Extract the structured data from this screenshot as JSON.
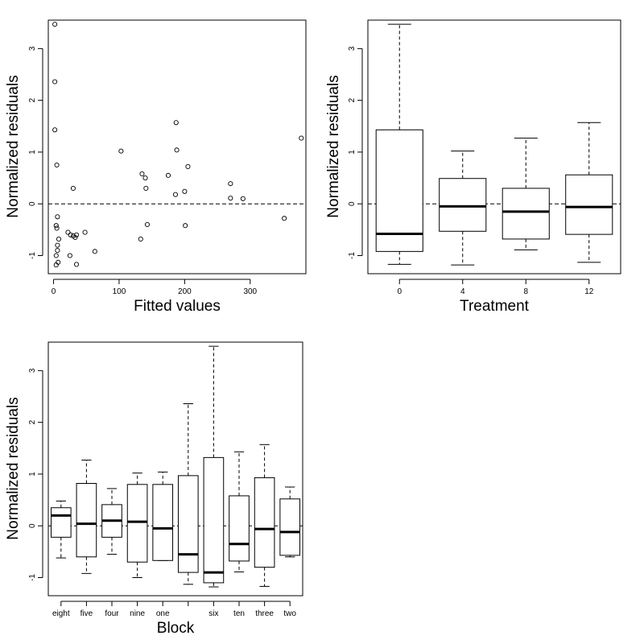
{
  "chart_data": [
    {
      "type": "scatter",
      "xlabel": "Fitted values",
      "ylabel": "Normalized residuals",
      "xlim": [
        -8,
        385
      ],
      "ylim": [
        -1.35,
        3.55
      ],
      "xticks": [
        0,
        100,
        200,
        300
      ],
      "yticks": [
        -1,
        0,
        1,
        2,
        3
      ],
      "reference_line": 0,
      "points": [
        {
          "x": 2,
          "y": 3.47
        },
        {
          "x": 2,
          "y": 2.36
        },
        {
          "x": 2,
          "y": 1.43
        },
        {
          "x": 5,
          "y": 0.75
        },
        {
          "x": 6,
          "y": -0.25
        },
        {
          "x": 4,
          "y": -0.42
        },
        {
          "x": 5,
          "y": -0.47
        },
        {
          "x": 8,
          "y": -0.68
        },
        {
          "x": 6,
          "y": -0.8
        },
        {
          "x": 6,
          "y": -0.9
        },
        {
          "x": 4,
          "y": -1.0
        },
        {
          "x": 7,
          "y": -1.13
        },
        {
          "x": 4,
          "y": -1.18
        },
        {
          "x": 22,
          "y": -0.55
        },
        {
          "x": 26,
          "y": -0.6
        },
        {
          "x": 30,
          "y": -0.62
        },
        {
          "x": 33,
          "y": -0.65
        },
        {
          "x": 35,
          "y": -0.6
        },
        {
          "x": 25,
          "y": -1.0
        },
        {
          "x": 35,
          "y": -1.17
        },
        {
          "x": 48,
          "y": -0.55
        },
        {
          "x": 63,
          "y": -0.92
        },
        {
          "x": 30,
          "y": 0.3
        },
        {
          "x": 103,
          "y": 1.02
        },
        {
          "x": 135,
          "y": 0.58
        },
        {
          "x": 140,
          "y": 0.5
        },
        {
          "x": 141,
          "y": 0.3
        },
        {
          "x": 143,
          "y": -0.4
        },
        {
          "x": 133,
          "y": -0.68
        },
        {
          "x": 175,
          "y": 0.55
        },
        {
          "x": 187,
          "y": 1.57
        },
        {
          "x": 188,
          "y": 1.04
        },
        {
          "x": 186,
          "y": 0.18
        },
        {
          "x": 200,
          "y": 0.24
        },
        {
          "x": 205,
          "y": 0.72
        },
        {
          "x": 201,
          "y": -0.42
        },
        {
          "x": 270,
          "y": 0.39
        },
        {
          "x": 270,
          "y": 0.11
        },
        {
          "x": 289,
          "y": 0.1
        },
        {
          "x": 352,
          "y": -0.28
        },
        {
          "x": 378,
          "y": 1.27
        }
      ]
    },
    {
      "type": "box",
      "xlabel": "Treatment",
      "ylabel": "Normalized residuals",
      "ylim": [
        -1.35,
        3.55
      ],
      "yticks": [
        -1,
        0,
        1,
        2,
        3
      ],
      "reference_line": 0,
      "categories": [
        "0",
        "4",
        "8",
        "12"
      ],
      "boxes": [
        {
          "min": -1.17,
          "q1": -0.92,
          "median": -0.58,
          "q3": 1.43,
          "max": 3.47
        },
        {
          "min": -1.18,
          "q1": -0.53,
          "median": -0.05,
          "q3": 0.49,
          "max": 1.02
        },
        {
          "min": -0.89,
          "q1": -0.68,
          "median": -0.15,
          "q3": 0.3,
          "max": 1.27
        },
        {
          "min": -1.13,
          "q1": -0.59,
          "median": -0.06,
          "q3": 0.56,
          "max": 1.57
        }
      ]
    },
    {
      "type": "box",
      "xlabel": "Block",
      "ylabel": "Normalized residuals",
      "ylim": [
        -1.35,
        3.55
      ],
      "yticks": [
        -1,
        0,
        1,
        2,
        3
      ],
      "reference_line": 0,
      "categories": [
        "eight",
        "five",
        "four",
        "nine",
        "one",
        "",
        "six",
        "ten",
        "three",
        "two"
      ],
      "boxes": [
        {
          "min": -0.62,
          "q1": -0.22,
          "median": 0.2,
          "q3": 0.35,
          "max": 0.48
        },
        {
          "min": -0.92,
          "q1": -0.6,
          "median": 0.04,
          "q3": 0.82,
          "max": 1.27
        },
        {
          "min": -0.55,
          "q1": -0.22,
          "median": 0.1,
          "q3": 0.41,
          "max": 0.72
        },
        {
          "min": -1.0,
          "q1": -0.7,
          "median": 0.08,
          "q3": 0.8,
          "max": 1.02
        },
        {
          "min": -0.67,
          "q1": -0.67,
          "median": -0.05,
          "q3": 0.8,
          "max": 1.04
        },
        {
          "min": -1.13,
          "q1": -0.9,
          "median": -0.55,
          "q3": 0.97,
          "max": 2.36
        },
        {
          "min": -1.18,
          "q1": -1.1,
          "median": -0.9,
          "q3": 1.32,
          "max": 3.47
        },
        {
          "min": -0.89,
          "q1": -0.68,
          "median": -0.35,
          "q3": 0.58,
          "max": 1.43
        },
        {
          "min": -1.17,
          "q1": -0.8,
          "median": -0.06,
          "q3": 0.93,
          "max": 1.57
        },
        {
          "min": -0.6,
          "q1": -0.57,
          "median": -0.12,
          "q3": 0.52,
          "max": 0.75
        }
      ]
    }
  ]
}
